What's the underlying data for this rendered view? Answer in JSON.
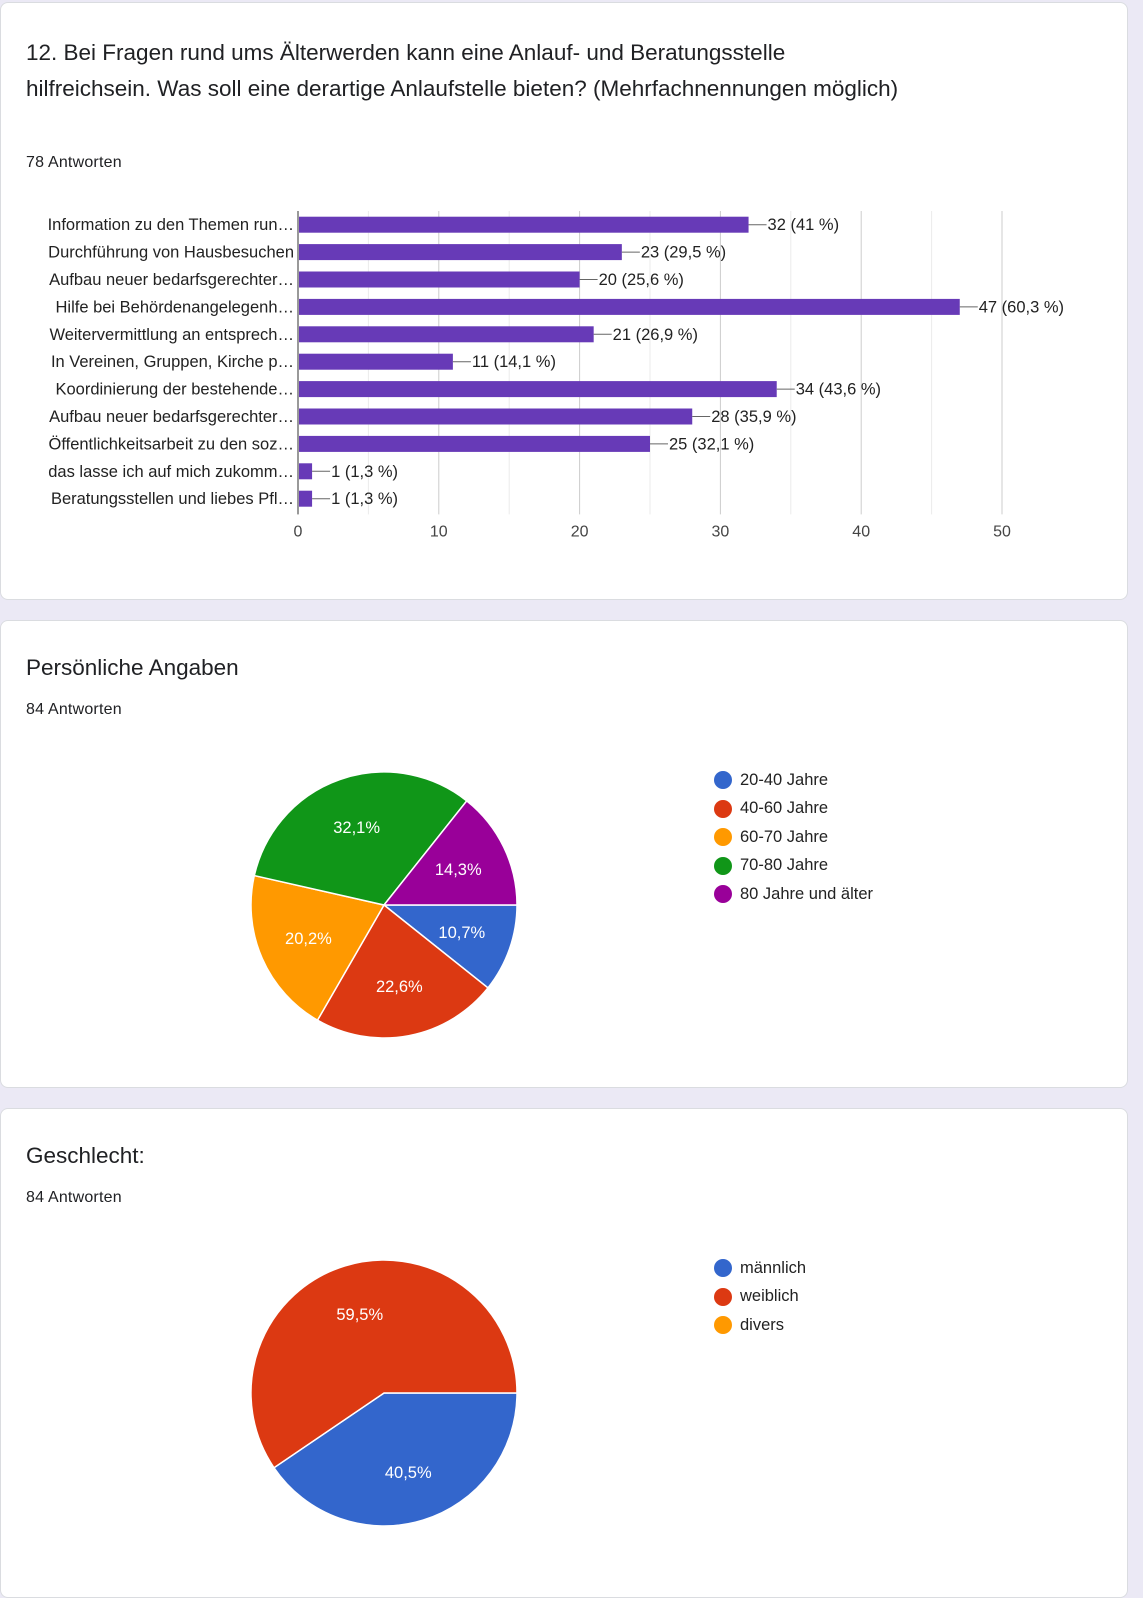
{
  "question": {
    "title": "12. Bei Fragen rund ums Älterwerden kann eine Anlauf- und Beratungsstelle hilfreichsein. Was soll eine derartige Anlaufstelle bieten? (Mehrfachnennungen möglich)",
    "responses": "78 Antworten"
  },
  "section_age": {
    "title": "Persönliche Angaben",
    "responses": "84 Antworten"
  },
  "section_gender": {
    "title": "Geschlecht:",
    "responses": "84 Antworten"
  },
  "chart_data": [
    {
      "type": "bar",
      "orientation": "horizontal",
      "categories": [
        "Information zu den Themen run…",
        "Durchführung von Hausbesuchen",
        "Aufbau neuer bedarfsgerechter…",
        "Hilfe bei Behördenangelegenh…",
        "Weitervermittlung an entsprech…",
        "In Vereinen, Gruppen, Kirche p…",
        "Koordinierung der bestehende…",
        "Aufbau neuer bedarfsgerechter…",
        "Öffentlichkeitsarbeit zu den soz…",
        "das lasse ich auf mich zukomm…",
        "Beratungsstellen und liebes Pfl…"
      ],
      "values": [
        32,
        23,
        20,
        47,
        21,
        11,
        34,
        28,
        25,
        1,
        1
      ],
      "data_labels": [
        "32 (41 %)",
        "23 (29,5 %)",
        "20 (25,6 %)",
        "47 (60,3 %)",
        "21 (26,9 %)",
        "11 (14,1 %)",
        "34 (43,6 %)",
        "28 (35,9 %)",
        "25 (32,1 %)",
        "1 (1,3 %)",
        "1 (1,3 %)"
      ],
      "xlim": [
        0,
        50
      ],
      "xticks": [
        "0",
        "10",
        "20",
        "30",
        "40",
        "50"
      ],
      "color": "#673ab7",
      "grid": true
    },
    {
      "type": "pie",
      "labels": [
        "20-40 Jahre",
        "40-60 Jahre",
        "60-70 Jahre",
        "70-80 Jahre",
        "80 Jahre und älter"
      ],
      "values": [
        10.7,
        22.6,
        20.2,
        32.1,
        14.3
      ],
      "slice_labels": [
        "10,7%",
        "22,6%",
        "20,2%",
        "32,1%",
        "14,3%"
      ],
      "colors": [
        "#3366cc",
        "#dc3912",
        "#ff9900",
        "#109618",
        "#990099"
      ],
      "legend": "right"
    },
    {
      "type": "pie",
      "labels": [
        "männlich",
        "weiblich",
        "divers"
      ],
      "values": [
        40.5,
        59.5,
        0
      ],
      "slice_labels": [
        "40,5%",
        "59,5%",
        ""
      ],
      "colors": [
        "#3366cc",
        "#dc3912",
        "#ff9900"
      ],
      "legend": "right"
    }
  ]
}
